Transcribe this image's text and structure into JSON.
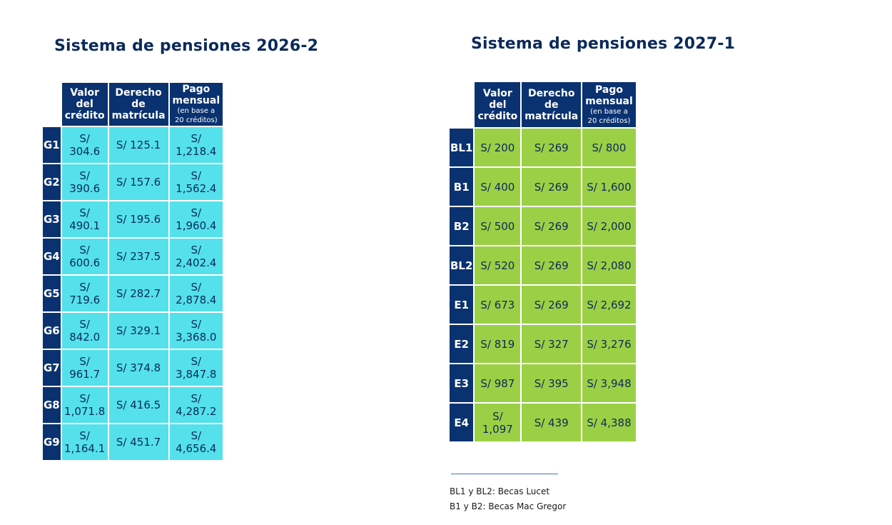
{
  "tables": [
    {
      "title": "Sistema de pensiones 2026-2",
      "headers": [
        {
          "label": "Valor del crédito",
          "sub": ""
        },
        {
          "label": "Derecho de matrícula",
          "sub": ""
        },
        {
          "label": "Pago mensual",
          "sub": "(en base a 20 créditos)"
        }
      ],
      "rows": [
        {
          "label": "G1",
          "cells": [
            "S/ 304.6",
            "S/ 125.1",
            "S/ 1,218.4"
          ]
        },
        {
          "label": "G2",
          "cells": [
            "S/ 390.6",
            "S/ 157.6",
            "S/ 1,562.4"
          ]
        },
        {
          "label": "G3",
          "cells": [
            "S/ 490.1",
            "S/ 195.6",
            "S/ 1,960.4"
          ]
        },
        {
          "label": "G4",
          "cells": [
            "S/ 600.6",
            "S/ 237.5",
            "S/ 2,402.4"
          ]
        },
        {
          "label": "G5",
          "cells": [
            "S/ 719.6",
            "S/ 282.7",
            "S/ 2,878.4"
          ]
        },
        {
          "label": "G6",
          "cells": [
            "S/ 842.0",
            "S/ 329.1",
            "S/ 3,368.0"
          ]
        },
        {
          "label": "G7",
          "cells": [
            "S/ 961.7",
            "S/ 374.8",
            "S/ 3,847.8"
          ]
        },
        {
          "label": "G8",
          "cells": [
            "S/ 1,071.8",
            "S/ 416.5",
            "S/ 4,287.2"
          ]
        },
        {
          "label": "G9",
          "cells": [
            "S/ 1,164.1",
            "S/ 451.7",
            "S/ 4,656.4"
          ]
        }
      ]
    },
    {
      "title": "Sistema de pensiones 2027-1",
      "headers": [
        {
          "label": "Valor del crédito",
          "sub": ""
        },
        {
          "label": "Derecho de matrícula",
          "sub": ""
        },
        {
          "label": "Pago mensual",
          "sub": "(en base a 20 créditos)"
        }
      ],
      "rows": [
        {
          "label": "BL1",
          "cells": [
            "S/ 200",
            "S/ 269",
            "S/ 800"
          ]
        },
        {
          "label": "B1",
          "cells": [
            "S/ 400",
            "S/ 269",
            "S/ 1,600"
          ]
        },
        {
          "label": "B2",
          "cells": [
            "S/ 500",
            "S/ 269",
            "S/ 2,000"
          ]
        },
        {
          "label": "BL2",
          "cells": [
            "S/ 520",
            "S/ 269",
            "S/ 2,080"
          ]
        },
        {
          "label": "E1",
          "cells": [
            "S/ 673",
            "S/ 269",
            "S/ 2,692"
          ]
        },
        {
          "label": "E2",
          "cells": [
            "S/ 819",
            "S/ 327",
            "S/ 3,276"
          ]
        },
        {
          "label": "E3",
          "cells": [
            "S/ 987",
            "S/ 395",
            "S/ 3,948"
          ]
        },
        {
          "label": "E4",
          "cells": [
            "S/ 1,097",
            "S/ 439",
            "S/ 4,388"
          ]
        }
      ]
    }
  ],
  "footnotes": [
    "BL1 y BL2: Becas Lucet",
    "B1 y B2: Becas Mac Gregor"
  ],
  "colors": {
    "header": "#0a3270",
    "table1_cells": "#54e1eb",
    "table2_cells": "#9bd046",
    "title": "#0b2a5b"
  }
}
